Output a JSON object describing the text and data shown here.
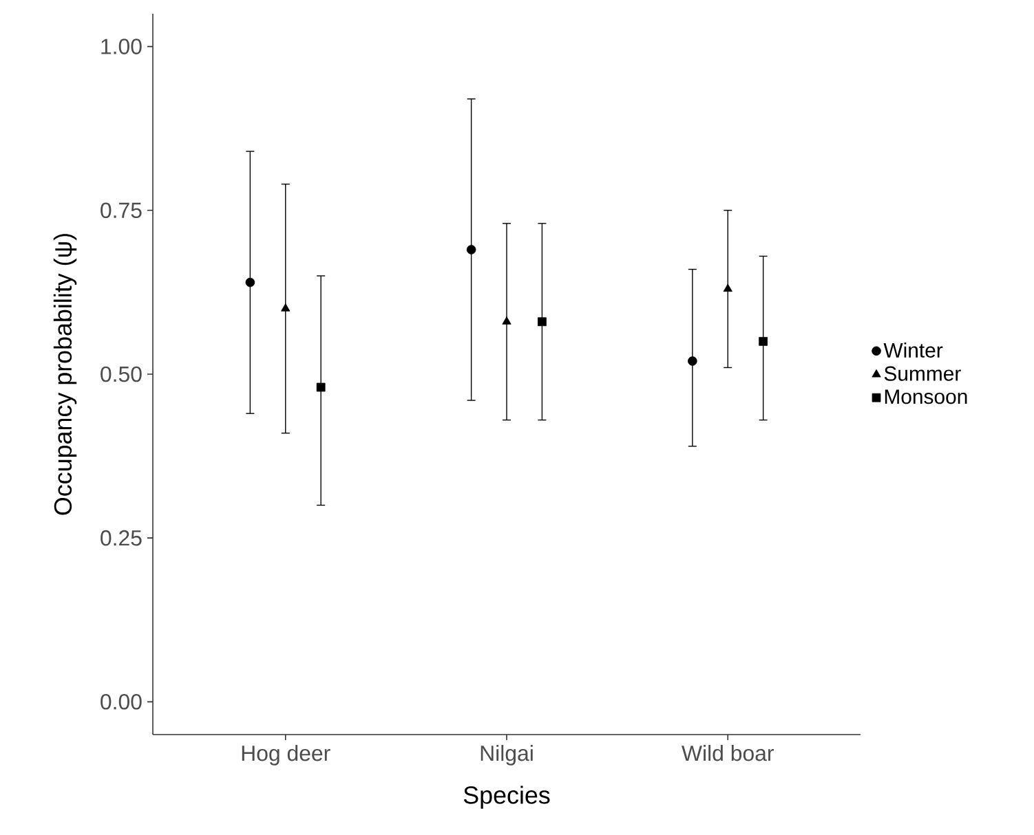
{
  "chart_data": {
    "type": "scatter",
    "xlabel": "Species",
    "ylabel": "Occupancy probability (ψ)",
    "categories": [
      "Hog deer",
      "Nilgai",
      "Wild boar"
    ],
    "ylim": [
      -0.05,
      1.05
    ],
    "yticks": [
      {
        "value": 0,
        "label": "0.00"
      },
      {
        "value": 0.25,
        "label": "0.25"
      },
      {
        "value": 0.5,
        "label": "0.50"
      },
      {
        "value": 0.75,
        "label": "0.75"
      },
      {
        "value": 1,
        "label": "1.00"
      }
    ],
    "grid": false,
    "legend": "right",
    "series": [
      {
        "name": "Winter",
        "color": "#000000",
        "marker": "circle",
        "values": [
          0.64,
          0.69,
          0.52
        ],
        "errors": [
          [
            0.44,
            0.84
          ],
          [
            0.46,
            0.92
          ],
          [
            0.39,
            0.66
          ]
        ]
      },
      {
        "name": "Summer",
        "color": "#000000",
        "marker": "triangle",
        "values": [
          0.6,
          0.58,
          0.63
        ],
        "errors": [
          [
            0.41,
            0.79
          ],
          [
            0.43,
            0.73
          ],
          [
            0.51,
            0.75
          ]
        ]
      },
      {
        "name": "Monsoon",
        "color": "#000000",
        "marker": "square",
        "values": [
          0.48,
          0.58,
          0.55
        ],
        "errors": [
          [
            0.3,
            0.65
          ],
          [
            0.43,
            0.73
          ],
          [
            0.43,
            0.68
          ]
        ]
      }
    ]
  }
}
